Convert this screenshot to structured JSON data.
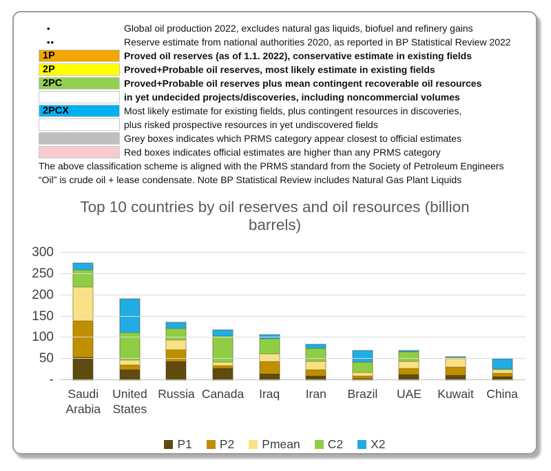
{
  "key": {
    "rows": [
      {
        "marker": "dot",
        "label": "•",
        "bg": "",
        "bold": false,
        "text": "Global oil production 2022, excludes natural gas liquids, biofuel and refinery gains"
      },
      {
        "marker": "dot",
        "label": "••",
        "bg": "",
        "bold": false,
        "text": "Reserve estimate from national authorities 2020, as reported in BP Statistical Review 2022"
      },
      {
        "marker": "box",
        "label": "1P",
        "bg": "#f3a502",
        "bold": true,
        "text": "Proved oil reserves (as of 1.1. 2022), conservative estimate in existing fields"
      },
      {
        "marker": "box",
        "label": "2P",
        "bg": "#ffff00",
        "bold": true,
        "text": "Proved+Probable oil reserves, most likely estimate in existing fields"
      },
      {
        "marker": "box",
        "label": "2PC",
        "bg": "#92d050",
        "bold": true,
        "text": "Proved+Probable oil reserves plus mean contingent recoverable oil resources"
      },
      {
        "marker": "box",
        "label": "",
        "bg": "#ffffff",
        "bold": true,
        "text": "in yet undecided projects/discoveries, including noncommercial volumes"
      },
      {
        "marker": "box",
        "label": "2PCX",
        "bg": "#00b0f0",
        "bold": false,
        "text": "Most likely estimate for existing fields, plus contingent resources in discoveries,"
      },
      {
        "marker": "box",
        "label": "",
        "bg": "#ffffff",
        "bold": false,
        "text": "plus risked prospective resources in yet undiscovered fields"
      },
      {
        "marker": "box",
        "label": "",
        "bg": "#bfbfbf",
        "bold": false,
        "text": "Grey boxes indicates which PRMS category appear closest to official estimates"
      },
      {
        "marker": "box",
        "label": "",
        "bg": "#f8cbcd",
        "bold": false,
        "text": "Red boxes indicates official estimates are higher than any PRMS category"
      }
    ],
    "footer": [
      "The above classification scheme is aligned with the PRMS standard from the Society of Petroleum Engineers",
      "“Oil” is crude oil + lease condensate. Note BP Statistical Review includes Natural Gas Plant Liquids"
    ]
  },
  "chart_data": {
    "type": "bar",
    "stacked": true,
    "title": "Top 10 countries by oil reserves and oil resources (billion barrels)",
    "title_lines": [
      "Top 10 countries by oil reserves and oil resources (billion",
      "barrels)"
    ],
    "categories": [
      "Saudi Arabia",
      "United States",
      "Russia",
      "Canada",
      "Iraq",
      "Iran",
      "Brazil",
      "UAE",
      "Kuwait",
      "China"
    ],
    "series": [
      {
        "name": "P1",
        "color": "#5f4a10",
        "values": [
          54,
          25,
          44,
          27,
          15,
          10,
          4,
          13,
          12,
          8
        ]
      },
      {
        "name": "P2",
        "color": "#bf8f00",
        "values": [
          85,
          10,
          27,
          8,
          28,
          15,
          5,
          15,
          19,
          8
        ]
      },
      {
        "name": "Pmean",
        "color": "#fbe185",
        "values": [
          80,
          12,
          23,
          7,
          18,
          19,
          9,
          16,
          20,
          8
        ]
      },
      {
        "name": "C2",
        "color": "#8fce44",
        "values": [
          40,
          65,
          28,
          62,
          36,
          31,
          24,
          22,
          2,
          2
        ]
      },
      {
        "name": "X2",
        "color": "#22ace4",
        "values": [
          16,
          80,
          15,
          15,
          10,
          10,
          28,
          4,
          2,
          24
        ]
      }
    ],
    "totals": [
      275,
      192,
      137,
      119,
      107,
      85,
      70,
      70,
      55,
      50
    ],
    "ylim": [
      0,
      300
    ],
    "ytick_step": 50,
    "ytick_labels": [
      "300",
      "250",
      "200",
      "150",
      "100",
      "50",
      "-"
    ],
    "grid": true,
    "legend_position": "bottom",
    "axis_color": "#404040",
    "grid_color": "#d9d9d9",
    "title_color": "#595959"
  }
}
